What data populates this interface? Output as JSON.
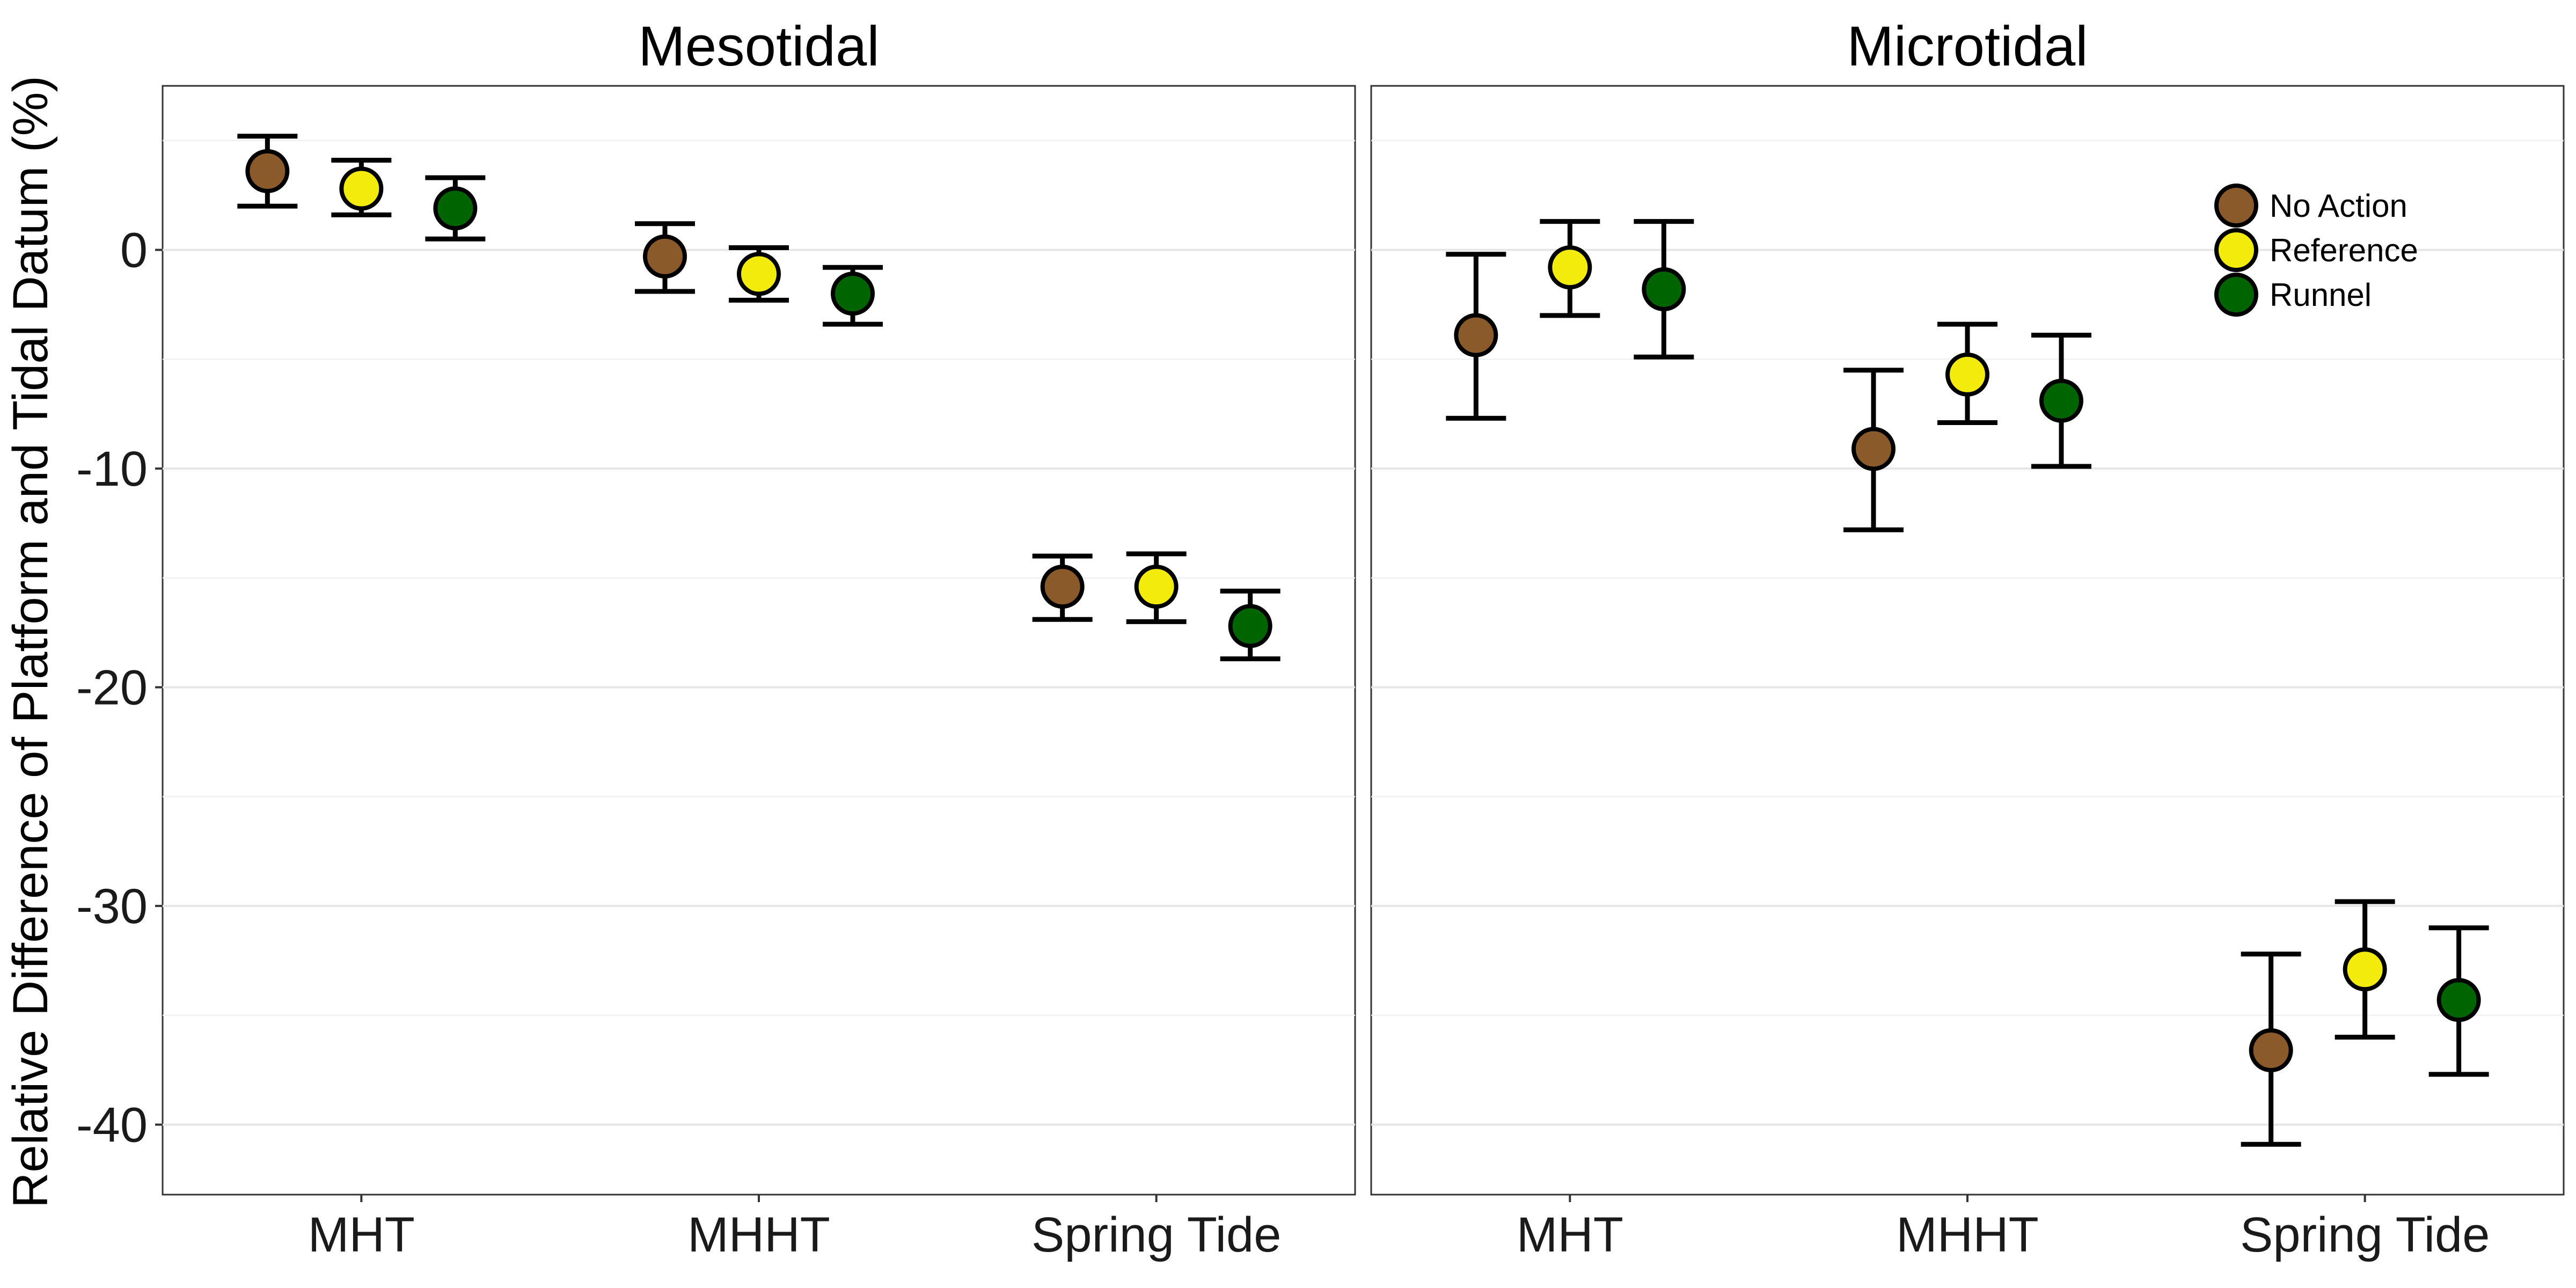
{
  "chart_data": {
    "type": "scatter",
    "title": "",
    "ylabel": "Relative Difference of Platform and Tidal Datum (%)",
    "xlabel": "",
    "ylim": [
      -43.2,
      7.5
    ],
    "yticks": [
      0,
      -10,
      -20,
      -30,
      -40
    ],
    "grid": true,
    "legend_position": "top-right",
    "categories": [
      "MHT",
      "MHHT",
      "Spring Tide"
    ],
    "series_styles": [
      {
        "name": "No Action",
        "color": "#8B5A2B"
      },
      {
        "name": "Reference",
        "color": "#F2EB0C"
      },
      {
        "name": "Runnel",
        "color": "#006400"
      }
    ],
    "panels": [
      {
        "title": "Mesotidal",
        "series": [
          {
            "name": "No Action",
            "values": [
              3.6,
              -0.3,
              -15.4
            ],
            "lower": [
              2.0,
              -1.9,
              -16.9
            ],
            "upper": [
              5.2,
              1.2,
              -14.0
            ]
          },
          {
            "name": "Reference",
            "values": [
              2.8,
              -1.1,
              -15.4
            ],
            "lower": [
              1.6,
              -2.3,
              -17.0
            ],
            "upper": [
              4.1,
              0.1,
              -13.9
            ]
          },
          {
            "name": "Runnel",
            "values": [
              1.9,
              -2.0,
              -17.2
            ],
            "lower": [
              0.5,
              -3.4,
              -18.7
            ],
            "upper": [
              3.3,
              -0.8,
              -15.6
            ]
          }
        ]
      },
      {
        "title": "Microtidal",
        "series": [
          {
            "name": "No Action",
            "values": [
              -3.9,
              -9.1,
              -36.6
            ],
            "lower": [
              -7.7,
              -12.8,
              -40.9
            ],
            "upper": [
              -0.2,
              -5.5,
              -32.2
            ]
          },
          {
            "name": "Reference",
            "values": [
              -0.8,
              -5.7,
              -32.9
            ],
            "lower": [
              -3.0,
              -7.9,
              -36.0
            ],
            "upper": [
              1.3,
              -3.4,
              -29.8
            ]
          },
          {
            "name": "Runnel",
            "values": [
              -1.8,
              -6.9,
              -34.3
            ],
            "lower": [
              -4.9,
              -9.9,
              -37.7
            ],
            "upper": [
              1.3,
              -3.9,
              -31.0
            ]
          }
        ]
      }
    ]
  }
}
